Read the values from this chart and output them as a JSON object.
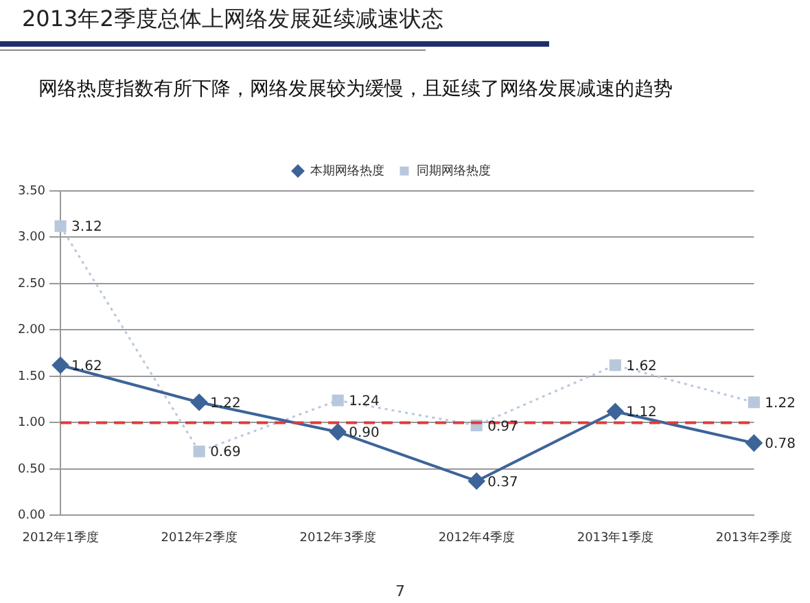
{
  "chart_data": {
    "type": "line",
    "title": "2013年2季度总体上网络发展延续减速状态",
    "subtitle": "网络热度指数有所下降，网络发展较为缓慢，且延续了网络发展减速的趋势",
    "categories": [
      "2012年1季度",
      "2012年2季度",
      "2012年3季度",
      "2012年4季度",
      "2013年1季度",
      "2013年2季度"
    ],
    "series": [
      {
        "name": "本期网络热度",
        "color": "#3c6499",
        "marker": "diamond",
        "line_style": "solid",
        "values": [
          1.62,
          1.22,
          0.9,
          0.37,
          1.12,
          0.78
        ],
        "value_labels": [
          "1.62",
          "1.22",
          "0.90",
          "0.37",
          "1.12",
          "0.78"
        ]
      },
      {
        "name": "同期网络热度",
        "color": "#b8c8dc",
        "marker": "square",
        "line_style": "dotted",
        "values": [
          3.12,
          0.69,
          1.24,
          0.97,
          1.62,
          1.22
        ],
        "value_labels": [
          "3.12",
          "0.69",
          "1.24",
          "0.97",
          "1.62",
          "1.22"
        ]
      }
    ],
    "ylim": [
      0,
      3.5
    ],
    "yticks": [
      {
        "value": 0,
        "label": "0.00"
      },
      {
        "value": 0.5,
        "label": "0.50"
      },
      {
        "value": 1,
        "label": "1.00"
      },
      {
        "value": 1.5,
        "label": "1.50"
      },
      {
        "value": 2,
        "label": "2.00"
      },
      {
        "value": 2.5,
        "label": "2.50"
      },
      {
        "value": 3,
        "label": "3.00"
      },
      {
        "value": 3.5,
        "label": "3.50"
      }
    ],
    "ref_lines": [
      {
        "axis": "y",
        "value": 1,
        "color": "#e03a3a",
        "line_style": "dashed"
      }
    ],
    "grid": "y",
    "legend": "top",
    "annotations": [
      "7"
    ]
  }
}
